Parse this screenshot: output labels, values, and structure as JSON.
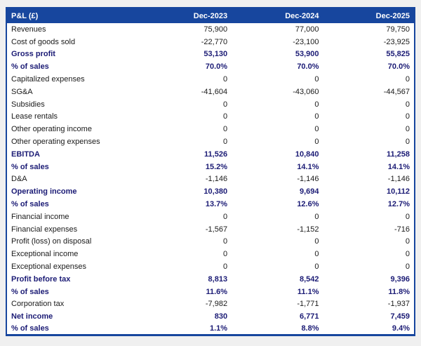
{
  "table": {
    "header": {
      "label": "P&L (£)",
      "columns": [
        "Dec-2023",
        "Dec-2024",
        "Dec-2025"
      ]
    },
    "rows": [
      {
        "label": "Revenues",
        "values": [
          "75,900",
          "77,000",
          "79,750"
        ],
        "bold": false
      },
      {
        "label": "Cost of goods sold",
        "values": [
          "-22,770",
          "-23,100",
          "-23,925"
        ],
        "bold": false
      },
      {
        "label": "Gross profit",
        "values": [
          "53,130",
          "53,900",
          "55,825"
        ],
        "bold": true
      },
      {
        "label": "% of sales",
        "values": [
          "70.0%",
          "70.0%",
          "70.0%"
        ],
        "bold": true
      },
      {
        "label": "Capitalized expenses",
        "values": [
          "0",
          "0",
          "0"
        ],
        "bold": false
      },
      {
        "label": "SG&A",
        "values": [
          "-41,604",
          "-43,060",
          "-44,567"
        ],
        "bold": false
      },
      {
        "label": "Subsidies",
        "values": [
          "0",
          "0",
          "0"
        ],
        "bold": false
      },
      {
        "label": "Lease rentals",
        "values": [
          "0",
          "0",
          "0"
        ],
        "bold": false
      },
      {
        "label": "Other operating income",
        "values": [
          "0",
          "0",
          "0"
        ],
        "bold": false
      },
      {
        "label": "Other operating expenses",
        "values": [
          "0",
          "0",
          "0"
        ],
        "bold": false
      },
      {
        "label": "EBITDA",
        "values": [
          "11,526",
          "10,840",
          "11,258"
        ],
        "bold": true
      },
      {
        "label": "% of sales",
        "values": [
          "15.2%",
          "14.1%",
          "14.1%"
        ],
        "bold": true
      },
      {
        "label": "D&A",
        "values": [
          "-1,146",
          "-1,146",
          "-1,146"
        ],
        "bold": false
      },
      {
        "label": "Operating income",
        "values": [
          "10,380",
          "9,694",
          "10,112"
        ],
        "bold": true
      },
      {
        "label": "% of sales",
        "values": [
          "13.7%",
          "12.6%",
          "12.7%"
        ],
        "bold": true
      },
      {
        "label": "Financial income",
        "values": [
          "0",
          "0",
          "0"
        ],
        "bold": false
      },
      {
        "label": "Financial expenses",
        "values": [
          "-1,567",
          "-1,152",
          "-716"
        ],
        "bold": false
      },
      {
        "label": "Profit (loss) on disposal",
        "values": [
          "0",
          "0",
          "0"
        ],
        "bold": false
      },
      {
        "label": "Exceptional income",
        "values": [
          "0",
          "0",
          "0"
        ],
        "bold": false
      },
      {
        "label": "Exceptional expenses",
        "values": [
          "0",
          "0",
          "0"
        ],
        "bold": false
      },
      {
        "label": "Profit before tax",
        "values": [
          "8,813",
          "8,542",
          "9,396"
        ],
        "bold": true
      },
      {
        "label": "% of sales",
        "values": [
          "11.6%",
          "11.1%",
          "11.8%"
        ],
        "bold": true
      },
      {
        "label": "Corporation tax",
        "values": [
          "-7,982",
          "-1,771",
          "-1,937"
        ],
        "bold": false
      },
      {
        "label": "Net income",
        "values": [
          "830",
          "6,771",
          "7,459"
        ],
        "bold": true
      },
      {
        "label": "% of sales",
        "values": [
          "1.1%",
          "8.8%",
          "9.4%"
        ],
        "bold": true
      }
    ]
  },
  "colors": {
    "header_bg": "#17469e",
    "border": "#17469e",
    "bold_text": "#1b1b75",
    "body_text": "#1a1a1a",
    "page_bg": "#f0f0f0"
  },
  "chart_data": {
    "type": "table",
    "title": "P&L (£)",
    "columns": [
      "Dec-2023",
      "Dec-2024",
      "Dec-2025"
    ],
    "rows": [
      {
        "label": "Revenues",
        "values": [
          75900,
          77000,
          79750
        ]
      },
      {
        "label": "Cost of goods sold",
        "values": [
          -22770,
          -23100,
          -23925
        ]
      },
      {
        "label": "Gross profit",
        "values": [
          53130,
          53900,
          55825
        ]
      },
      {
        "label": "Gross profit % of sales",
        "values": [
          "70.0%",
          "70.0%",
          "70.0%"
        ]
      },
      {
        "label": "Capitalized expenses",
        "values": [
          0,
          0,
          0
        ]
      },
      {
        "label": "SG&A",
        "values": [
          -41604,
          -43060,
          -44567
        ]
      },
      {
        "label": "Subsidies",
        "values": [
          0,
          0,
          0
        ]
      },
      {
        "label": "Lease rentals",
        "values": [
          0,
          0,
          0
        ]
      },
      {
        "label": "Other operating income",
        "values": [
          0,
          0,
          0
        ]
      },
      {
        "label": "Other operating expenses",
        "values": [
          0,
          0,
          0
        ]
      },
      {
        "label": "EBITDA",
        "values": [
          11526,
          10840,
          11258
        ]
      },
      {
        "label": "EBITDA % of sales",
        "values": [
          "15.2%",
          "14.1%",
          "14.1%"
        ]
      },
      {
        "label": "D&A",
        "values": [
          -1146,
          -1146,
          -1146
        ]
      },
      {
        "label": "Operating income",
        "values": [
          10380,
          9694,
          10112
        ]
      },
      {
        "label": "Operating income % of sales",
        "values": [
          "13.7%",
          "12.6%",
          "12.7%"
        ]
      },
      {
        "label": "Financial income",
        "values": [
          0,
          0,
          0
        ]
      },
      {
        "label": "Financial expenses",
        "values": [
          -1567,
          -1152,
          -716
        ]
      },
      {
        "label": "Profit (loss) on disposal",
        "values": [
          0,
          0,
          0
        ]
      },
      {
        "label": "Exceptional income",
        "values": [
          0,
          0,
          0
        ]
      },
      {
        "label": "Exceptional expenses",
        "values": [
          0,
          0,
          0
        ]
      },
      {
        "label": "Profit before tax",
        "values": [
          8813,
          8542,
          9396
        ]
      },
      {
        "label": "Profit before tax % of sales",
        "values": [
          "11.6%",
          "11.1%",
          "11.8%"
        ]
      },
      {
        "label": "Corporation tax",
        "values": [
          -7982,
          -1771,
          -1937
        ]
      },
      {
        "label": "Net income",
        "values": [
          830,
          6771,
          7459
        ]
      },
      {
        "label": "Net income % of sales",
        "values": [
          "1.1%",
          "8.8%",
          "9.4%"
        ]
      }
    ]
  }
}
